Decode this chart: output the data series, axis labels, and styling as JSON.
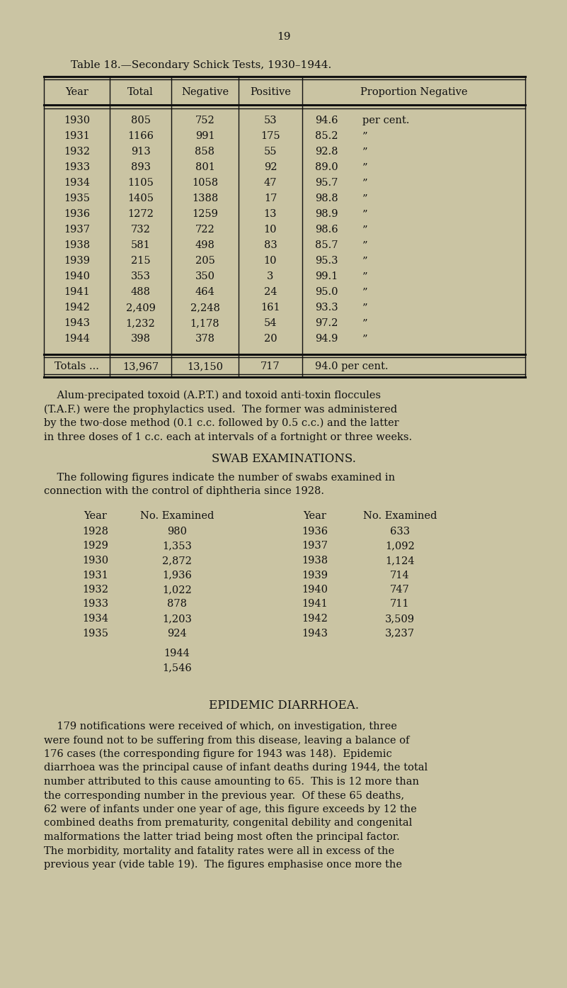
{
  "page_number": "19",
  "table_title": "Table 18.—Secondary Schick Tests, 1930–1944.",
  "table_headers": [
    "Year",
    "Total",
    "Negative",
    "Positive",
    "Proportion Negative"
  ],
  "table_rows": [
    [
      "1930",
      "805",
      "752",
      "53",
      "94.6 per cent."
    ],
    [
      "1931",
      "1166",
      "991",
      "175",
      "85.2    ”"
    ],
    [
      "1932",
      "913",
      "858",
      "55",
      "92.8    ”"
    ],
    [
      "1933",
      "893",
      "801",
      "92",
      "89.0    ”"
    ],
    [
      "1934",
      "1105",
      "1058",
      "47",
      "95.7    ”"
    ],
    [
      "1935",
      "1405",
      "1388",
      "17",
      "98.8    ”"
    ],
    [
      "1936",
      "1272",
      "1259",
      "13",
      "98.9    ”"
    ],
    [
      "1937",
      "732",
      "722",
      "10",
      "98.6    ”"
    ],
    [
      "1938",
      "581",
      "498",
      "83",
      "85.7    ”"
    ],
    [
      "1939",
      "215",
      "205",
      "10",
      "95.3    ”"
    ],
    [
      "1940",
      "353",
      "350",
      "3",
      "99.1    ”"
    ],
    [
      "1941",
      "488",
      "464",
      "24",
      "95.0    ”"
    ],
    [
      "1942",
      "2,409",
      "2,248",
      "161",
      "93.3    ”"
    ],
    [
      "1943",
      "1,232",
      "1,178",
      "54",
      "97.2    ”"
    ],
    [
      "1944",
      "398",
      "378",
      "20",
      "94.9    ”"
    ]
  ],
  "totals_row": [
    "Totals ...",
    "13,967",
    "13,150",
    "717",
    "94.0 per cent."
  ],
  "paragraph1_lines": [
    "    Alum-precipated toxoid (A.P.T.) and toxoid anti-toxin floccules",
    "(T.A.F.) were the prophylactics used.  The former was administered",
    "by the two-dose method (0.1 c.c. followed by 0.5 c.c.) and the latter",
    "in three doses of 1 c.c. each at intervals of a fortnight or three weeks."
  ],
  "swab_title": "SWAB EXAMINATIONS.",
  "swab_intro_lines": [
    "    The following figures indicate the number of swabs examined in",
    "connection with the control of diphtheria since 1928."
  ],
  "swab_left_years": [
    "1928",
    "1929",
    "1930",
    "1931",
    "1932",
    "1933",
    "1934",
    "1935"
  ],
  "swab_left_nums": [
    "980",
    "1,353",
    "2,872",
    "1,936",
    "1,022",
    "878",
    "1,203",
    "924"
  ],
  "swab_right_years": [
    "1936",
    "1937",
    "1938",
    "1939",
    "1940",
    "1941",
    "1942",
    "1943"
  ],
  "swab_right_nums": [
    "633",
    "1,092",
    "1,124",
    "714",
    "747",
    "711",
    "3,509",
    "3,237"
  ],
  "swab_1944": "1944",
  "swab_1944_num": "1,546",
  "epidemic_title": "EPIDEMIC DIARRHOEA.",
  "epidemic_lines": [
    "    179 notifications were received of which, on investigation, three",
    "were found not to be suffering from this disease, leaving a balance of",
    "176 cases (the corresponding figure for 1943 was 148).  Epidemic",
    "diarrhoea was the principal cause of infant deaths during 1944, the total",
    "number attributed to this cause amounting to 65.  This is 12 more than",
    "the corresponding number in the previous year.  Of these 65 deaths,",
    "62 were of infants under one year of age, this figure exceeds by 12 the",
    "combined deaths from prematurity, congenital debility and congenital",
    "malformations the latter triad being most often the principal factor.",
    "The morbidity, mortality and fatality rates were all in excess of the",
    "previous year (vide table 19).  The figures emphasise once more the"
  ],
  "bg_color": "#cac4a3",
  "text_color": "#111111"
}
